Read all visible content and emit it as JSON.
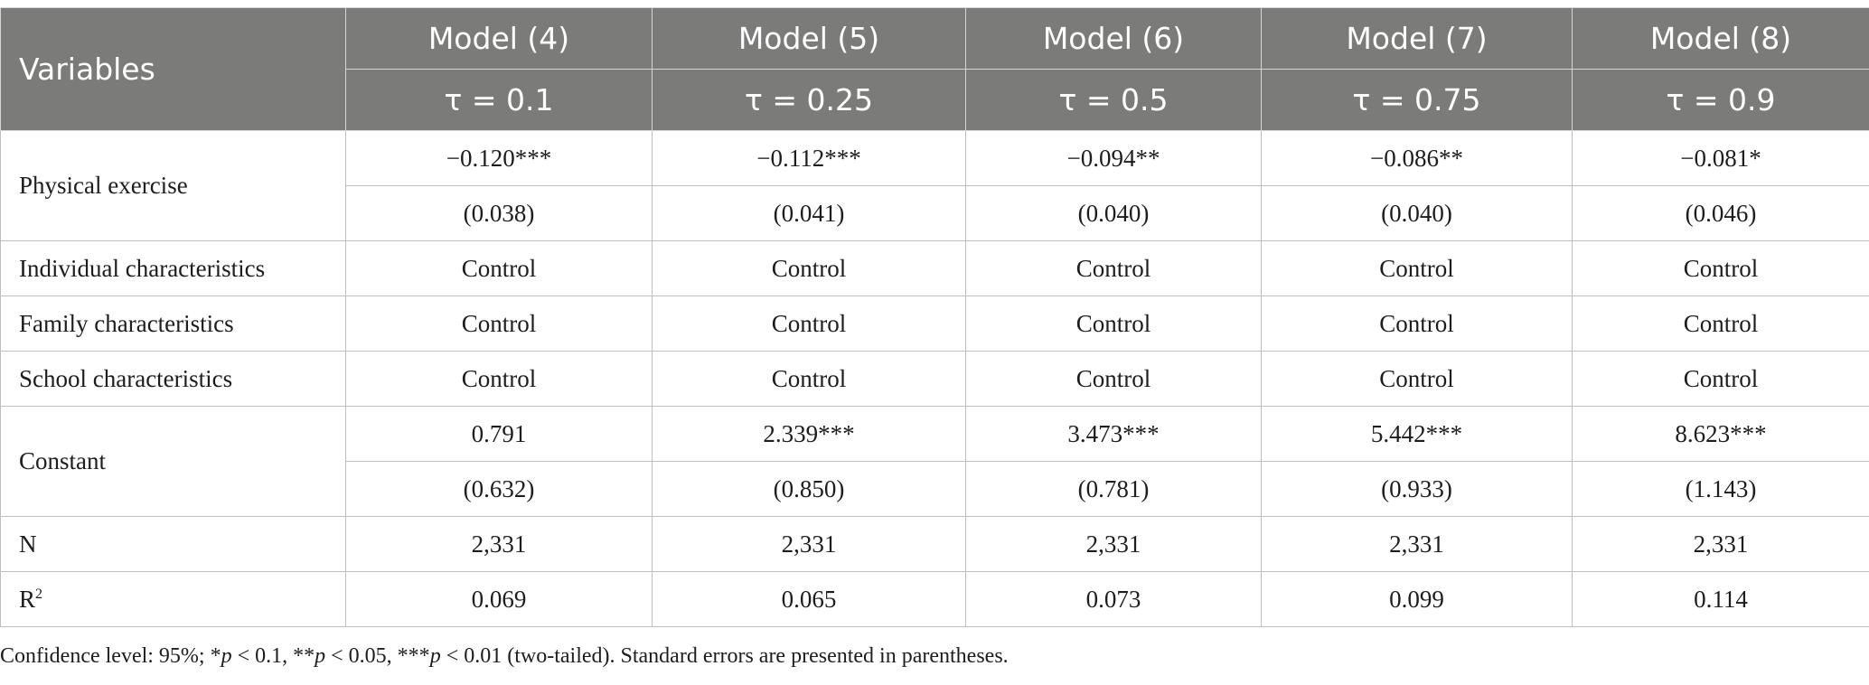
{
  "header": {
    "variables_label": "Variables",
    "models": [
      {
        "name": "Model (4)",
        "tau": "τ = 0.1"
      },
      {
        "name": "Model (5)",
        "tau": "τ = 0.25"
      },
      {
        "name": "Model (6)",
        "tau": "τ = 0.5"
      },
      {
        "name": "Model (7)",
        "tau": "τ = 0.75"
      },
      {
        "name": "Model (8)",
        "tau": "τ = 0.9"
      }
    ]
  },
  "rows": {
    "physical_exercise": {
      "label": "Physical exercise",
      "coef": [
        "−0.120***",
        "−0.112***",
        "−0.094**",
        "−0.086**",
        "−0.081*"
      ],
      "se": [
        "(0.038)",
        "(0.041)",
        "(0.040)",
        "(0.040)",
        "(0.046)"
      ]
    },
    "individual": {
      "label": "Individual characteristics",
      "values": [
        "Control",
        "Control",
        "Control",
        "Control",
        "Control"
      ]
    },
    "family": {
      "label": "Family characteristics",
      "values": [
        "Control",
        "Control",
        "Control",
        "Control",
        "Control"
      ]
    },
    "school": {
      "label": "School characteristics",
      "values": [
        "Control",
        "Control",
        "Control",
        "Control",
        "Control"
      ]
    },
    "constant": {
      "label": "Constant",
      "coef": [
        "0.791",
        "2.339***",
        "3.473***",
        "5.442***",
        "8.623***"
      ],
      "se": [
        "(0.632)",
        "(0.850)",
        "(0.781)",
        "(0.933)",
        "(1.143)"
      ]
    },
    "n": {
      "label": "N",
      "values": [
        "2,331",
        "2,331",
        "2,331",
        "2,331",
        "2,331"
      ]
    },
    "r2": {
      "label": "R",
      "label_sup": "2",
      "values": [
        "0.069",
        "0.065",
        "0.073",
        "0.099",
        "0.114"
      ]
    }
  },
  "note": {
    "prefix": "Confidence level: 95%; *",
    "p1": "p",
    "t1": " < 0.1, **",
    "p2": "p",
    "t2": " < 0.05, ***",
    "p3": "p",
    "t3": " < 0.01 (two-tailed). Standard errors are presented in parentheses."
  }
}
